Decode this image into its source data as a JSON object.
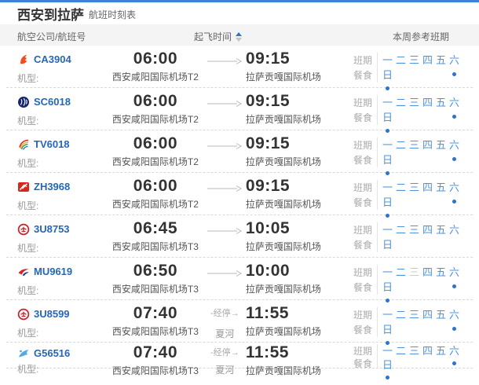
{
  "page": {
    "title": "西安到拉萨",
    "subtitle": "航班时刻表"
  },
  "header": {
    "col_airline": "航空公司/航班号",
    "sort_label": "起飞时间",
    "sort_direction": "asc",
    "col_week": "本周参考班期"
  },
  "labels": {
    "aircraft": "机型:",
    "schedule": "班期",
    "meal": "餐食",
    "stopover": "经停"
  },
  "week_days": [
    "一",
    "二",
    "三",
    "四",
    "五",
    "六",
    "日"
  ],
  "colors": {
    "accent_top_line": "#3e81d8",
    "link_blue": "#2467b8",
    "sort_blue": "#2b74cf",
    "day_active": "#4f93db",
    "day_inactive": "#cccccc",
    "meal_dot": "#2b74cf",
    "header_band": "#f4f4f4"
  },
  "flights": [
    {
      "flight_no": "CA3904",
      "airline_icon": "air-china-icon",
      "dep_time": "06:00",
      "arr_time": "09:15",
      "dep_airport": "西安咸阳国际机场T2",
      "arr_airport": "拉萨贡嘎国际机场",
      "stop_city": "",
      "days_active": [
        true,
        true,
        true,
        true,
        true,
        true,
        true
      ],
      "meal_days": [
        false,
        false,
        false,
        false,
        false,
        true,
        true
      ]
    },
    {
      "flight_no": "SC6018",
      "airline_icon": "shandong-airlines-icon",
      "dep_time": "06:00",
      "arr_time": "09:15",
      "dep_airport": "西安咸阳国际机场T2",
      "arr_airport": "拉萨贡嘎国际机场",
      "stop_city": "",
      "days_active": [
        true,
        true,
        true,
        true,
        true,
        true,
        true
      ],
      "meal_days": [
        false,
        false,
        false,
        false,
        false,
        true,
        true
      ]
    },
    {
      "flight_no": "TV6018",
      "airline_icon": "tibet-airlines-icon",
      "dep_time": "06:00",
      "arr_time": "09:15",
      "dep_airport": "西安咸阳国际机场T2",
      "arr_airport": "拉萨贡嘎国际机场",
      "stop_city": "",
      "days_active": [
        true,
        true,
        true,
        true,
        true,
        true,
        true
      ],
      "meal_days": [
        false,
        false,
        false,
        false,
        false,
        true,
        true
      ]
    },
    {
      "flight_no": "ZH3968",
      "airline_icon": "shenzhen-airlines-icon",
      "dep_time": "06:00",
      "arr_time": "09:15",
      "dep_airport": "西安咸阳国际机场T2",
      "arr_airport": "拉萨贡嘎国际机场",
      "stop_city": "",
      "days_active": [
        true,
        true,
        true,
        true,
        true,
        true,
        true
      ],
      "meal_days": [
        false,
        false,
        false,
        false,
        false,
        true,
        true
      ]
    },
    {
      "flight_no": "3U8753",
      "airline_icon": "sichuan-airlines-icon",
      "dep_time": "06:45",
      "arr_time": "10:05",
      "dep_airport": "西安咸阳国际机场T3",
      "arr_airport": "拉萨贡嘎国际机场",
      "stop_city": "",
      "days_active": [
        true,
        true,
        true,
        true,
        true,
        true,
        true
      ],
      "meal_days": [
        false,
        false,
        false,
        false,
        false,
        false,
        false
      ]
    },
    {
      "flight_no": "MU9619",
      "airline_icon": "china-eastern-icon",
      "dep_time": "06:50",
      "arr_time": "10:00",
      "dep_airport": "西安咸阳国际机场T3",
      "arr_airport": "拉萨贡嘎国际机场",
      "stop_city": "",
      "days_active": [
        true,
        true,
        false,
        true,
        true,
        true,
        true
      ],
      "meal_days": [
        false,
        false,
        false,
        false,
        false,
        true,
        true
      ]
    },
    {
      "flight_no": "3U8599",
      "airline_icon": "sichuan-airlines-icon",
      "dep_time": "07:40",
      "arr_time": "11:55",
      "dep_airport": "西安咸阳国际机场T3",
      "arr_airport": "拉萨贡嘎国际机场",
      "stop_city": "夏河",
      "days_active": [
        true,
        true,
        true,
        true,
        true,
        true,
        true
      ],
      "meal_days": [
        false,
        false,
        false,
        false,
        false,
        true,
        true
      ]
    },
    {
      "flight_no": "G56516",
      "airline_icon": "china-express-icon",
      "dep_time": "07:40",
      "arr_time": "11:55",
      "dep_airport": "西安咸阳国际机场T3",
      "arr_airport": "拉萨贡嘎国际机场",
      "stop_city": "夏河",
      "days_active": [
        true,
        true,
        true,
        true,
        true,
        true,
        true
      ],
      "meal_days": [
        false,
        false,
        false,
        false,
        false,
        true,
        true
      ]
    }
  ]
}
